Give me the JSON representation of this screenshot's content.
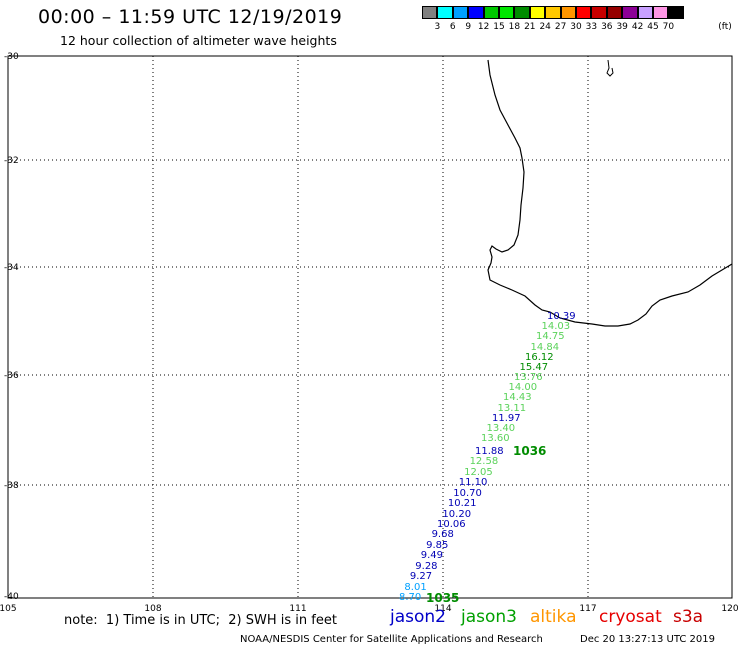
{
  "header": {
    "title": "00:00 – 11:59 UTC 12/19/2019",
    "subtitle": "12 hour collection of altimeter wave heights"
  },
  "color_scale": {
    "labels": [
      "3",
      "6",
      "9",
      "12",
      "15",
      "18",
      "21",
      "24",
      "27",
      "30",
      "33",
      "36",
      "39",
      "42",
      "45",
      "70"
    ],
    "unit": "(ft)",
    "colors": [
      "#808080",
      "#00ffff",
      "#00a0ff",
      "#0000ff",
      "#00c800",
      "#00e600",
      "#008c00",
      "#ffff00",
      "#ffc800",
      "#ff9600",
      "#ff0000",
      "#c80000",
      "#960000",
      "#8c0096",
      "#c8a0ff",
      "#ff96e6",
      "#000000"
    ]
  },
  "axes": {
    "lat_labels": [
      "-30",
      "-32",
      "-34",
      "-36",
      "-38",
      "-40"
    ],
    "lon_labels": [
      "105",
      "108",
      "111",
      "114",
      "117",
      "120"
    ]
  },
  "tracks": [
    {
      "mission": "jason2",
      "pass_label": "1035",
      "pass_color": "#008c00",
      "points": [
        {
          "v": "8.70",
          "c": "#00a0ff"
        },
        {
          "v": "8.01",
          "c": "#00a0ff"
        },
        {
          "v": "9.27",
          "c": "#0000b4"
        },
        {
          "v": "9.28",
          "c": "#0000b4"
        },
        {
          "v": "9.49",
          "c": "#0000b4"
        },
        {
          "v": "9.85",
          "c": "#0000b4"
        },
        {
          "v": "9.68",
          "c": "#0000b4"
        },
        {
          "v": "10.06",
          "c": "#0000b4"
        },
        {
          "v": "10.20",
          "c": "#0000b4"
        },
        {
          "v": "10.21",
          "c": "#0000b4"
        },
        {
          "v": "10.70",
          "c": "#0000b4"
        },
        {
          "v": "11.10",
          "c": "#0000b4"
        },
        {
          "v": "12.05",
          "c": "#5ad25a"
        },
        {
          "v": "12.58",
          "c": "#5ad25a"
        },
        {
          "v": "11.88",
          "c": "#0000b4"
        }
      ]
    },
    {
      "mission": "jason3",
      "pass_label": "1036",
      "pass_color": "#008c00",
      "points": [
        {
          "v": "13.60",
          "c": "#5ad25a"
        },
        {
          "v": "13.40",
          "c": "#5ad25a"
        },
        {
          "v": "11.97",
          "c": "#0000b4"
        },
        {
          "v": "13.11",
          "c": "#5ad25a"
        },
        {
          "v": "14.43",
          "c": "#5ad25a"
        },
        {
          "v": "14.00",
          "c": "#5ad25a"
        },
        {
          "v": "13.76",
          "c": "#5ad25a"
        },
        {
          "v": "15.47",
          "c": "#008c00"
        },
        {
          "v": "16.12",
          "c": "#008c00"
        },
        {
          "v": "14.84",
          "c": "#5ad25a"
        },
        {
          "v": "14.75",
          "c": "#5ad25a"
        },
        {
          "v": "14.03",
          "c": "#5ad25a"
        },
        {
          "v": "10.39",
          "c": "#0000b4"
        }
      ]
    }
  ],
  "legend": {
    "note": "note:  1) Time is in UTC;  2) SWH is in feet",
    "missions": [
      {
        "name": "jason2",
        "color": "#0000c8"
      },
      {
        "name": "jason3",
        "color": "#00a000"
      },
      {
        "name": "altika",
        "color": "#ff9600"
      },
      {
        "name": "cryosat",
        "color": "#e60000"
      },
      {
        "name": "s3a",
        "color": "#c80000"
      }
    ]
  },
  "footer": {
    "credit": "NOAA/NESDIS Center for Satellite Applications and Research",
    "timestamp": "Dec 20 13:27:13 UTC 2019"
  }
}
